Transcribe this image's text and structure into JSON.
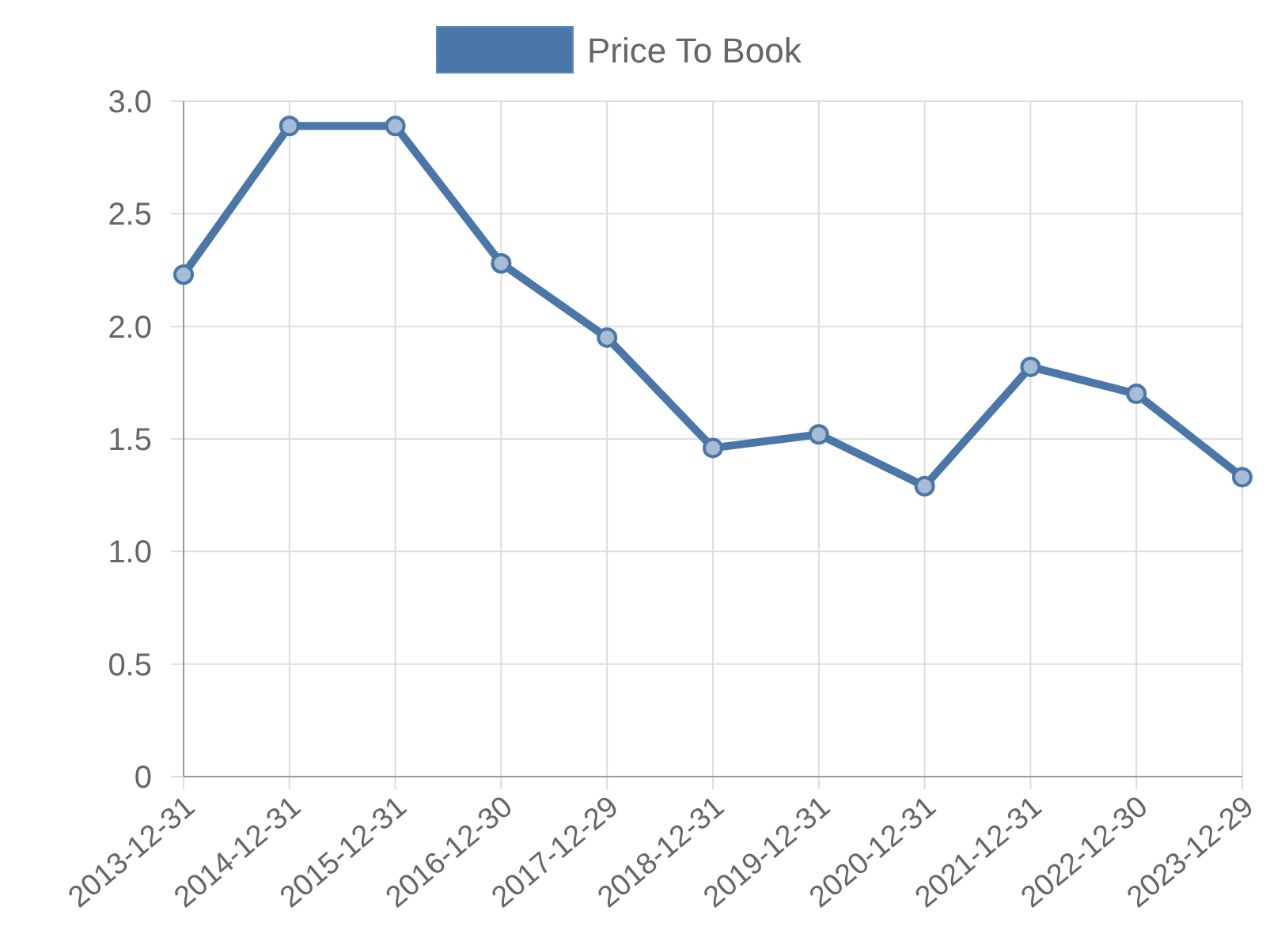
{
  "chart_data": {
    "type": "line",
    "categories": [
      "2013-12-31",
      "2014-12-31",
      "2015-12-31",
      "2016-12-30",
      "2017-12-29",
      "2018-12-31",
      "2019-12-31",
      "2020-12-31",
      "2021-12-31",
      "2022-12-30",
      "2023-12-29"
    ],
    "series": [
      {
        "name": "Price To Book",
        "color": "#4a76a8",
        "values": [
          2.23,
          2.89,
          2.89,
          2.28,
          1.95,
          1.46,
          1.52,
          1.29,
          1.82,
          1.7,
          1.33
        ]
      }
    ],
    "ylim": [
      0,
      3.0
    ],
    "yticks": [
      0,
      {
        "value": 0.5,
        "label": "0.5"
      },
      {
        "value": 1,
        "label": "1.0"
      },
      {
        "value": 1.5,
        "label": "1.5"
      },
      {
        "value": 2,
        "label": "2.0"
      },
      {
        "value": 2.5,
        "label": "2.5"
      },
      {
        "value": 3,
        "label": "3.0"
      }
    ],
    "grid": true,
    "legend": "top",
    "marker": "circle",
    "line_style": "solid"
  }
}
